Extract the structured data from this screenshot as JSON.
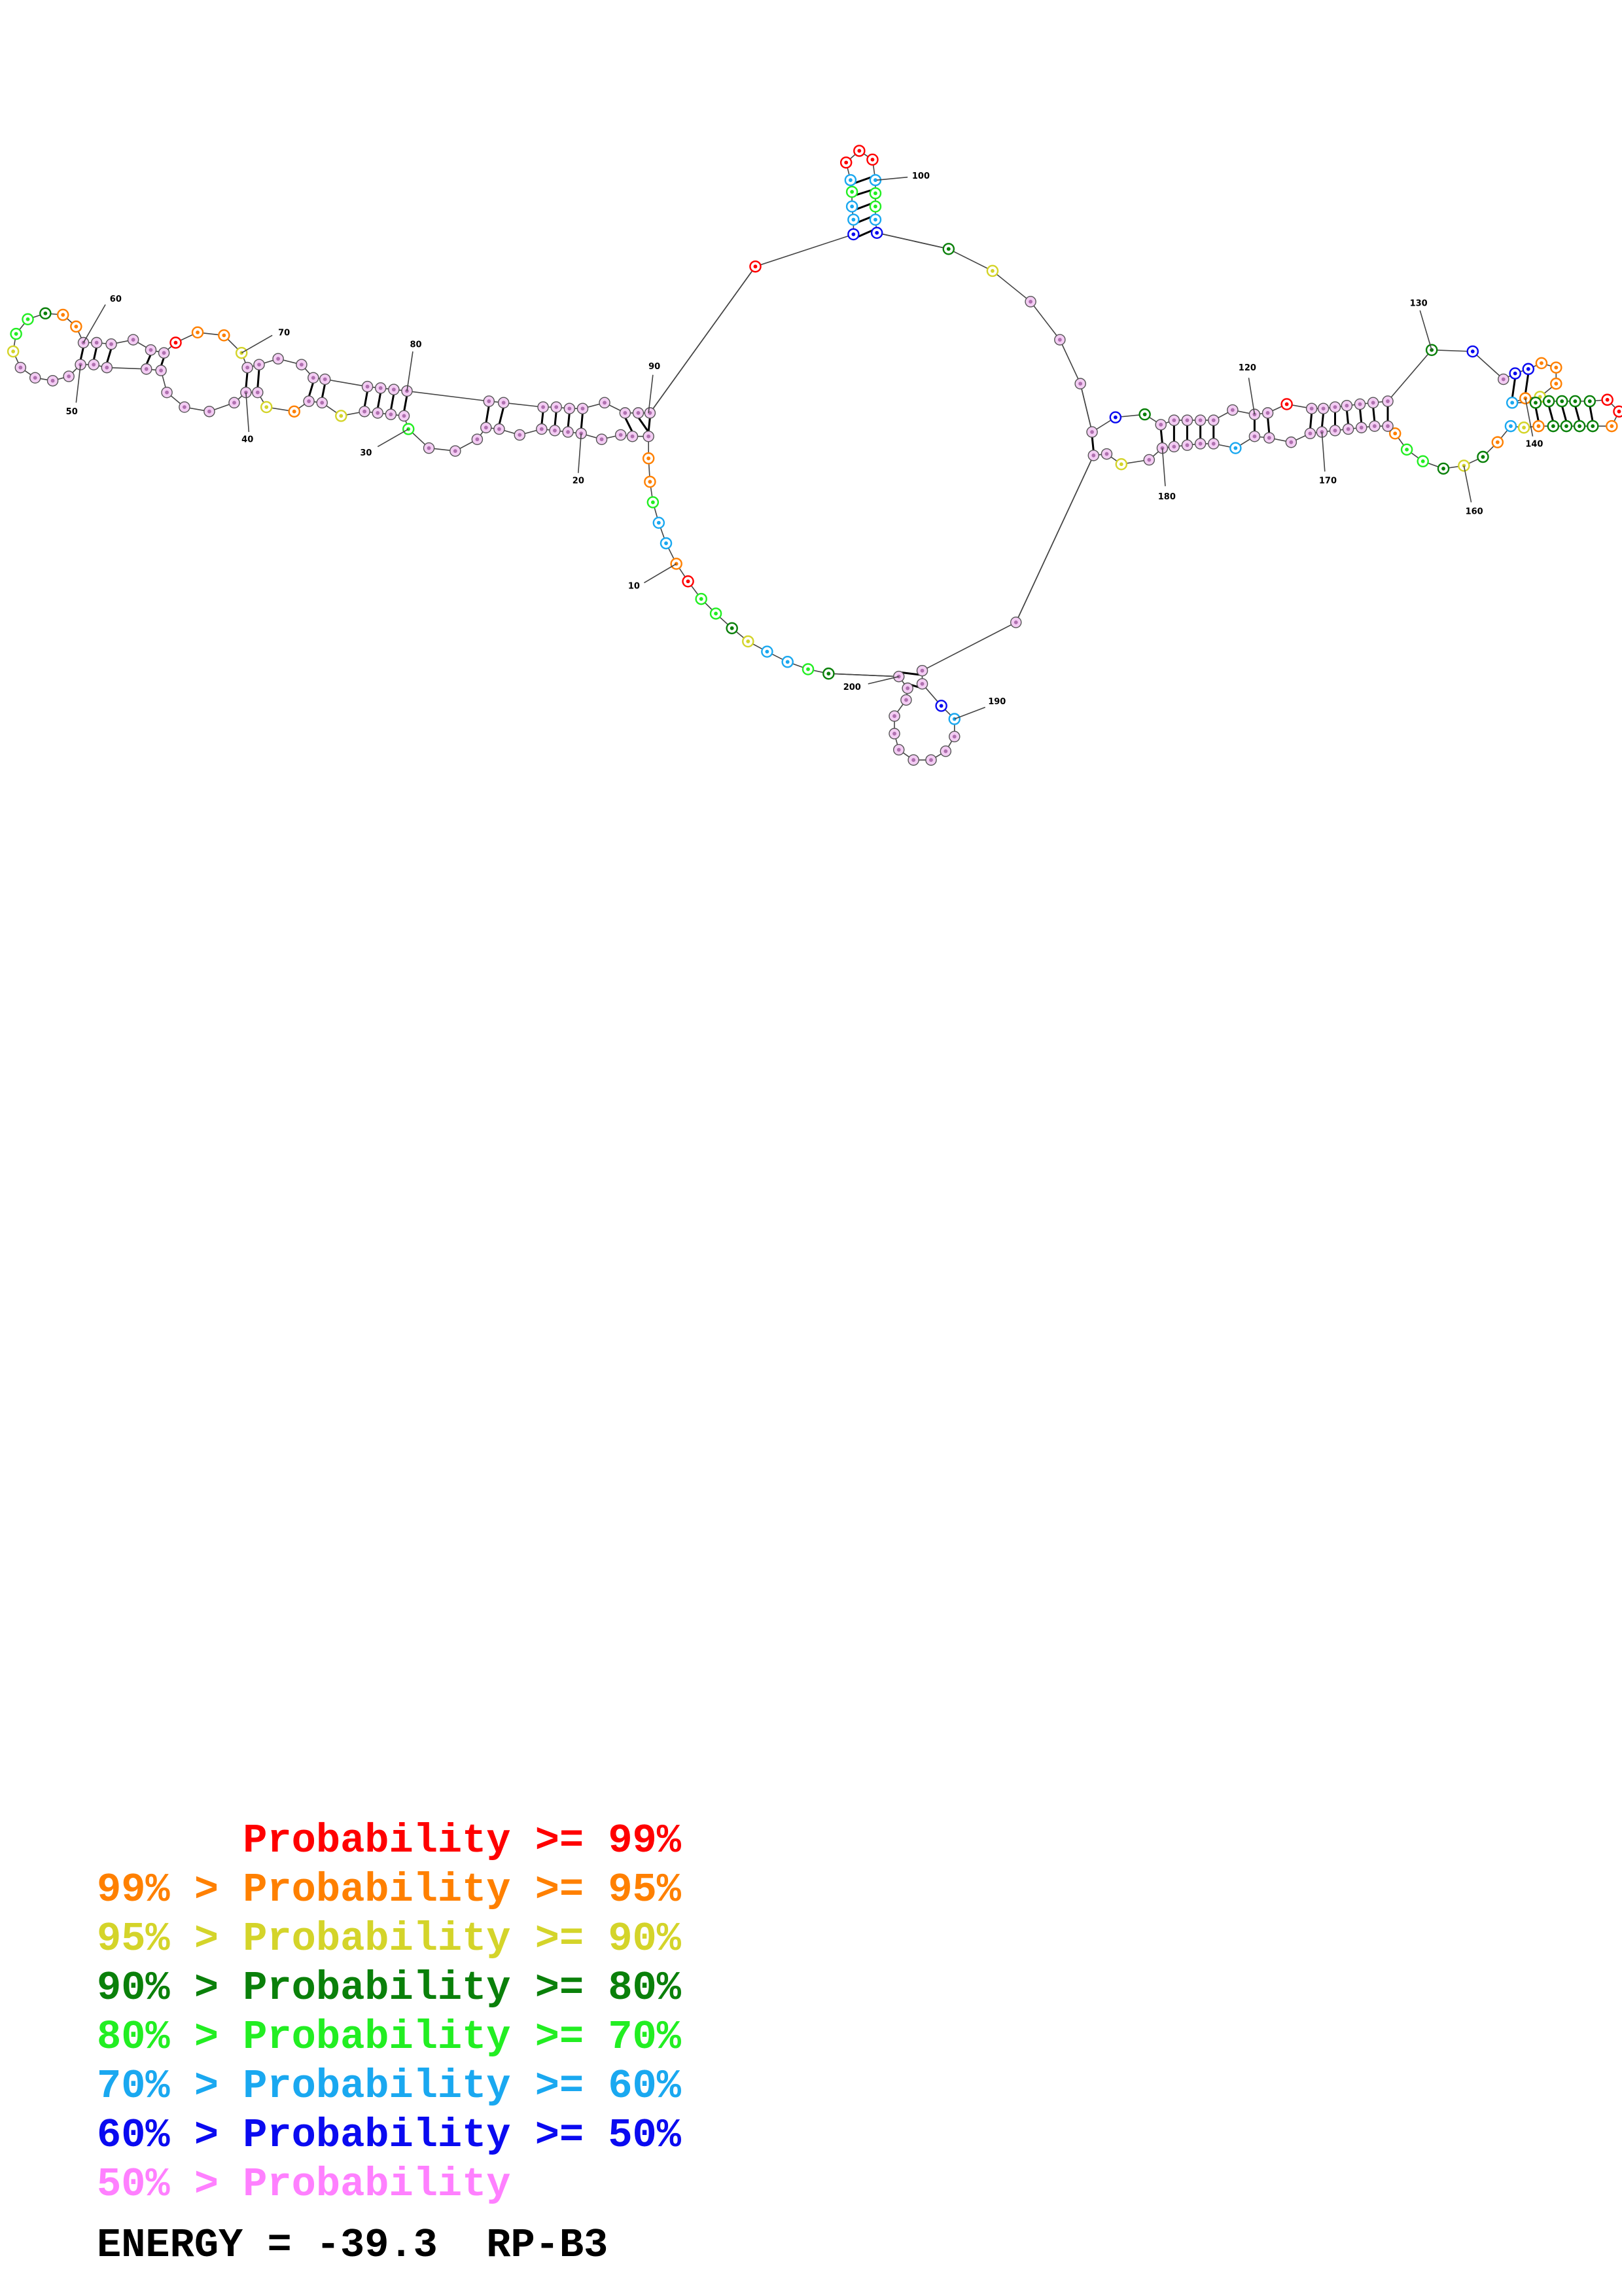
{
  "structure": {
    "tick_labels": [
      "10",
      "20",
      "30",
      "40",
      "50",
      "60",
      "70",
      "80",
      "90",
      "100",
      "120",
      "130",
      "140",
      "160",
      "170",
      "180",
      "190",
      "200"
    ]
  },
  "legend": {
    "rows": [
      {
        "lhs": "",
        "op": "",
        "mid": "Probability",
        "rhs": ">= 99%",
        "color": "#ff0000"
      },
      {
        "lhs": "99%",
        "op": ">",
        "mid": "Probability",
        "rhs": ">= 95%",
        "color": "#ff8000"
      },
      {
        "lhs": "95%",
        "op": ">",
        "mid": "Probability",
        "rhs": ">= 90%",
        "color": "#d4d42a"
      },
      {
        "lhs": "90%",
        "op": ">",
        "mid": "Probability",
        "rhs": ">= 80%",
        "color": "#0a800a"
      },
      {
        "lhs": "80%",
        "op": ">",
        "mid": "Probability",
        "rhs": ">= 70%",
        "color": "#22ee22"
      },
      {
        "lhs": "70%",
        "op": ">",
        "mid": "Probability",
        "rhs": ">= 60%",
        "color": "#1aa8f0"
      },
      {
        "lhs": "60%",
        "op": ">",
        "mid": "Probability",
        "rhs": ">= 50%",
        "color": "#0a0af0"
      },
      {
        "lhs": "50%",
        "op": ">",
        "mid": "Probability",
        "rhs": "",
        "color": "#ff80ff"
      }
    ]
  },
  "footer": {
    "energy_label": "ENERGY = -39.3  RP-B3"
  },
  "colors": {
    "p99": "#ff0000",
    "p95": "#ff8000",
    "p90": "#d4d42a",
    "p80": "#0a800a",
    "p70": "#22ee22",
    "p60": "#1aa8f0",
    "p50": "#0a0af0",
    "plow": "#ff80ff",
    "nucleotide_fill_low": "#f3ccf3"
  }
}
